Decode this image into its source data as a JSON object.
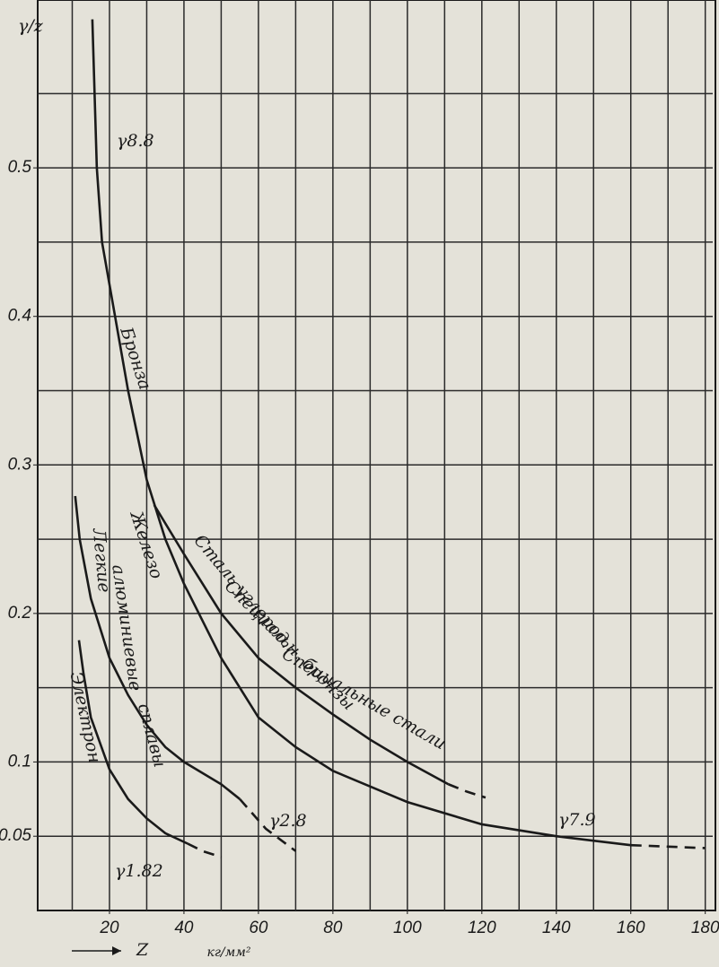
{
  "chart_data": {
    "type": "line",
    "y_label": "γ/z",
    "x_label": "Z",
    "x_unit": "кг/мм²",
    "xlim": [
      0,
      182
    ],
    "ylim": [
      0,
      0.61
    ],
    "xticks": [
      20,
      40,
      60,
      80,
      100,
      120,
      140,
      160,
      180
    ],
    "yticks": [
      0.05,
      0.1,
      0.2,
      0.3,
      0.4,
      0.5
    ],
    "xgrid": [
      10,
      20,
      30,
      40,
      50,
      60,
      70,
      80,
      90,
      100,
      110,
      120,
      130,
      140,
      150,
      160,
      170,
      180
    ],
    "ygrid": [
      0.05,
      0.1,
      0.15,
      0.2,
      0.25,
      0.3,
      0.35,
      0.4,
      0.45,
      0.5,
      0.55
    ],
    "grid": true,
    "series": [
      {
        "color": "#1a1a1a",
        "dashed": false,
        "x": [
          15.4,
          16.6,
          18,
          21.5,
          25,
          30,
          35,
          40,
          50,
          60,
          70,
          80,
          100,
          120,
          140,
          160
        ],
        "values": [
          0.6,
          0.5,
          0.45,
          0.4,
          0.35,
          0.29,
          0.25,
          0.22,
          0.17,
          0.13,
          0.11,
          0.094,
          0.073,
          0.058,
          0.05,
          0.044
        ]
      },
      {
        "color": "#1a1a1a",
        "dashed": true,
        "x": [
          160,
          170,
          180
        ],
        "values": [
          0.044,
          0.043,
          0.042
        ]
      },
      {
        "color": "#1a1a1a",
        "dashed": false,
        "x": [
          32,
          40,
          50,
          60,
          70,
          80,
          90,
          100,
          111
        ],
        "values": [
          0.273,
          0.24,
          0.2,
          0.17,
          0.15,
          0.132,
          0.115,
          0.1,
          0.085
        ]
      },
      {
        "color": "#1a1a1a",
        "dashed": true,
        "x": [
          111,
          116,
          121
        ],
        "values": [
          0.085,
          0.08,
          0.076
        ]
      },
      {
        "color": "#1a1a1a",
        "dashed": false,
        "x": [
          10.8,
          12,
          15,
          20,
          25,
          30,
          35,
          40,
          50,
          55
        ],
        "values": [
          0.279,
          0.25,
          0.21,
          0.17,
          0.145,
          0.125,
          0.11,
          0.1,
          0.085,
          0.075
        ]
      },
      {
        "color": "#1a1a1a",
        "dashed": true,
        "x": [
          55,
          62,
          70
        ],
        "values": [
          0.075,
          0.055,
          0.04
        ]
      },
      {
        "color": "#1a1a1a",
        "dashed": false,
        "x": [
          11.8,
          13,
          15,
          20,
          25,
          30,
          35,
          41
        ],
        "values": [
          0.182,
          0.16,
          0.13,
          0.095,
          0.075,
          0.062,
          0.052,
          0.045
        ]
      },
      {
        "color": "#1a1a1a",
        "dashed": true,
        "x": [
          41,
          45,
          50
        ],
        "values": [
          0.045,
          0.04,
          0.036
        ]
      }
    ],
    "annotations": [
      "γ8.8",
      "Бронза",
      "Железо",
      "Сталь углерод.",
      "Специальные стали",
      "Специальн. бронзы",
      "Легкие",
      "алюминиевые",
      "сплавы",
      "Электрон",
      "γ2.8",
      "γ1.82",
      "γ7.9"
    ]
  }
}
